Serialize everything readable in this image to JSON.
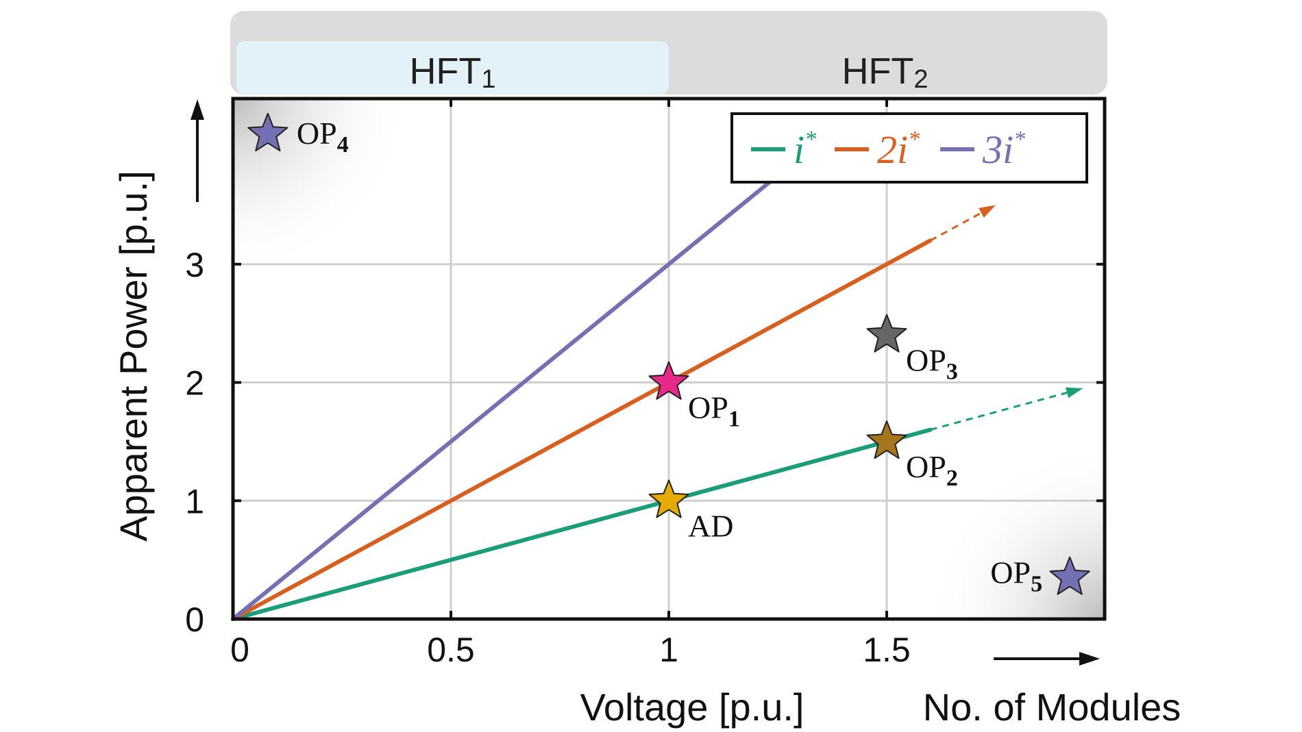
{
  "chart_data": {
    "type": "line",
    "xlabel": "Voltage [p.u.]",
    "ylabel": "Apparent Power [p.u.]",
    "secondary_xlabel": "No. of Modules",
    "xlim": [
      0,
      2.0
    ],
    "ylim": [
      0,
      4.4
    ],
    "xticks": [
      0,
      0.5,
      1,
      1.5
    ],
    "xtick_labels": [
      "0",
      "0.5",
      "1",
      "1.5"
    ],
    "yticks": [
      0,
      1,
      2,
      3
    ],
    "ytick_labels": [
      "0",
      "1",
      "2",
      "3"
    ],
    "grid": true,
    "legend_position": "top-right",
    "top_bands": [
      {
        "label": "HFT",
        "subscript": "1",
        "x_range": [
          0,
          1
        ],
        "color": "#e3f1f9"
      },
      {
        "label": "HFT",
        "subscript": "2",
        "x_range": [
          1,
          2.0
        ],
        "color": "#dcdcdc"
      }
    ],
    "series": [
      {
        "name": "i",
        "superscript": "*",
        "color": "#1a9e77",
        "x": [
          0,
          1.6
        ],
        "y": [
          0,
          1.6
        ],
        "extension": {
          "x": [
            1.6,
            1.95
          ],
          "y": [
            1.6,
            1.95
          ]
        }
      },
      {
        "name": "2i",
        "superscript": "*",
        "color": "#d95f1e",
        "x": [
          0,
          1.6
        ],
        "y": [
          0,
          3.2
        ],
        "extension": {
          "x": [
            1.6,
            1.75
          ],
          "y": [
            3.2,
            3.5
          ]
        }
      },
      {
        "name": "3i",
        "superscript": "*",
        "color": "#7570b3",
        "x": [
          0,
          1.27
        ],
        "y": [
          0,
          3.81
        ]
      }
    ],
    "points": [
      {
        "label": "OP",
        "subscript": "1",
        "x": 1.0,
        "y": 2.0,
        "color": "#e7298a",
        "label_side": "lower-right"
      },
      {
        "label": "OP",
        "subscript": "2",
        "x": 1.5,
        "y": 1.5,
        "color": "#a6761d",
        "label_side": "lower-right"
      },
      {
        "label": "OP",
        "subscript": "3",
        "x": 1.5,
        "y": 2.4,
        "color": "#666666",
        "label_side": "lower-right"
      },
      {
        "label": "OP",
        "subscript": "4",
        "x": 0.08,
        "y": 4.1,
        "color": "#7570b3",
        "label_side": "right"
      },
      {
        "label": "OP",
        "subscript": "5",
        "x": 1.92,
        "y": 0.35,
        "color": "#7570b3",
        "label_side": "left"
      },
      {
        "label": "AD",
        "subscript": "",
        "x": 1.0,
        "y": 1.0,
        "color": "#e6ab02",
        "label_side": "lower-right"
      }
    ]
  }
}
